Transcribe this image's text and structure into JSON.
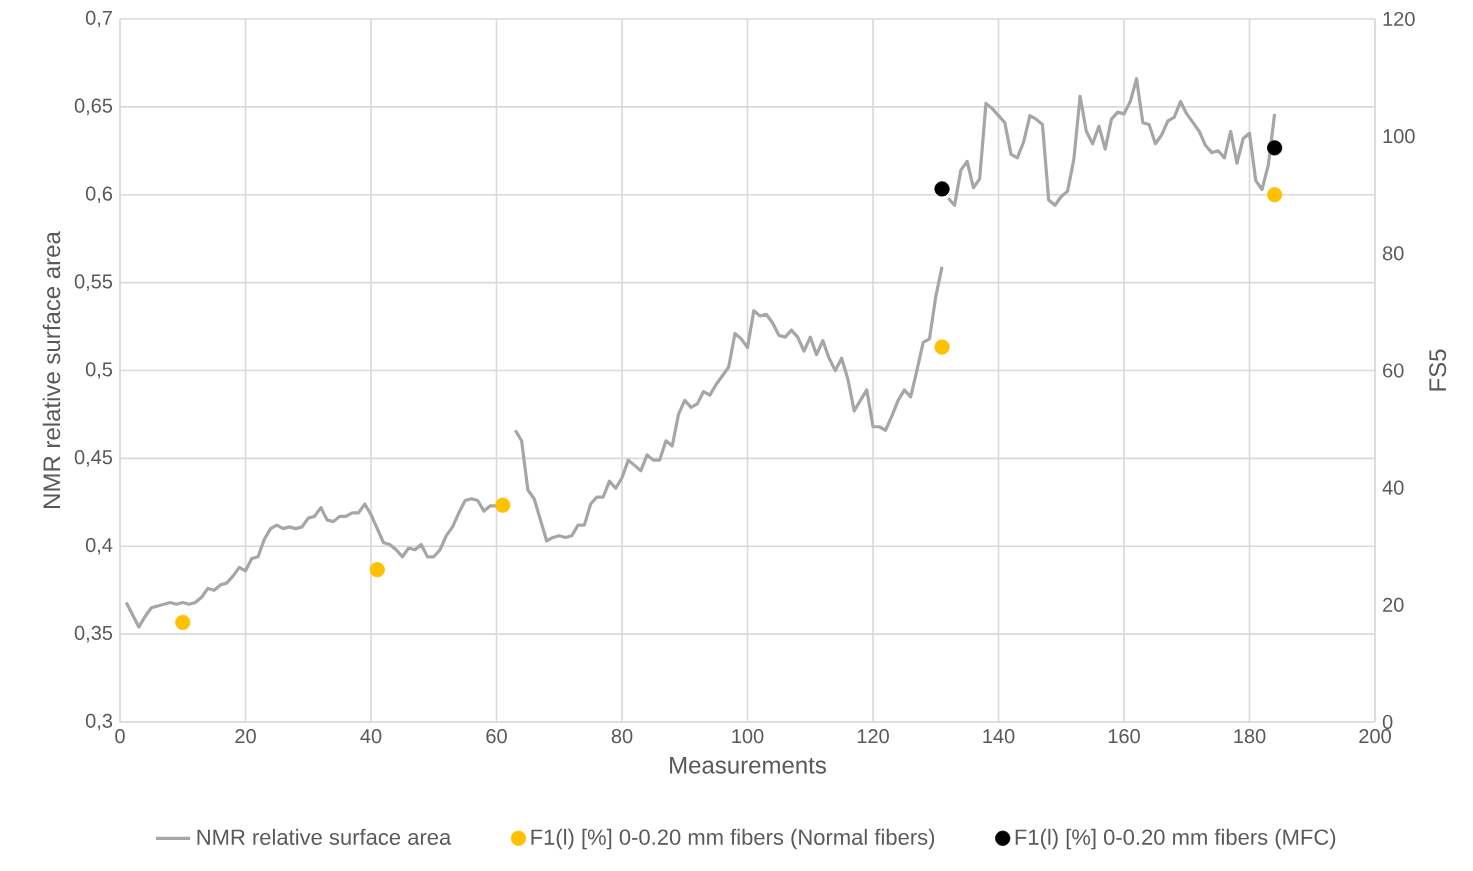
{
  "chart_data": {
    "type": "line",
    "xlabel": "Measurements",
    "ylabel": "NMR relative surface area",
    "y2label": "FS5",
    "xlim": [
      0,
      200
    ],
    "xticks": [
      0,
      20,
      40,
      60,
      80,
      100,
      120,
      140,
      160,
      180,
      200
    ],
    "ylim": [
      0.3,
      0.7
    ],
    "yticks": [
      {
        "value": 0.3,
        "label": "0,3"
      },
      {
        "value": 0.35,
        "label": "0,35"
      },
      {
        "value": 0.4,
        "label": "0,4"
      },
      {
        "value": 0.45,
        "label": "0,45"
      },
      {
        "value": 0.5,
        "label": "0,5"
      },
      {
        "value": 0.55,
        "label": "0,55"
      },
      {
        "value": 0.6,
        "label": "0,6"
      },
      {
        "value": 0.65,
        "label": "0,65"
      },
      {
        "value": 0.7,
        "label": "0,7"
      }
    ],
    "y2lim": [
      0,
      120
    ],
    "y2ticks": [
      0,
      20,
      40,
      60,
      80,
      100,
      120
    ],
    "grid": true,
    "legend": "bottom",
    "line_style": "solid",
    "series": [
      {
        "name": "NMR relative surface area",
        "color": "#a6a6a6",
        "x": [
          1,
          2,
          3,
          4,
          5,
          6,
          7,
          8,
          9,
          10,
          11,
          12,
          13,
          14,
          15,
          16,
          17,
          18,
          19,
          20,
          21,
          22,
          23,
          24,
          25,
          26,
          27,
          28,
          29,
          30,
          31,
          32,
          33,
          34,
          35,
          36,
          37,
          38,
          39,
          40,
          41,
          42,
          43,
          44,
          45,
          46,
          47,
          48,
          49,
          50,
          51,
          52,
          53,
          54,
          55,
          56,
          57,
          58,
          59,
          60,
          61,
          62,
          63,
          64,
          65,
          66,
          67,
          68,
          69,
          70,
          71,
          72,
          73,
          74,
          75,
          76,
          77,
          78,
          79,
          80,
          81,
          82,
          83,
          84,
          85,
          86,
          87,
          88,
          89,
          90,
          91,
          92,
          93,
          94,
          95,
          96,
          97,
          98,
          99,
          100,
          101,
          102,
          103,
          104,
          105,
          106,
          107,
          108,
          109,
          110,
          111,
          112,
          113,
          114,
          115,
          116,
          117,
          118,
          119,
          120,
          121,
          122,
          123,
          124,
          125,
          126,
          127,
          128,
          129,
          130,
          131,
          131.5,
          132,
          133,
          134,
          135,
          136,
          137,
          138,
          139,
          140,
          141,
          142,
          143,
          144,
          145,
          146,
          147,
          148,
          149,
          150,
          151,
          152,
          153,
          154,
          155,
          156,
          157,
          158,
          159,
          160,
          161,
          162,
          163,
          164,
          165,
          166,
          167,
          168,
          169,
          170,
          171,
          172,
          173,
          174,
          175,
          176,
          177,
          178,
          179,
          180,
          181,
          182,
          183,
          184
        ],
        "values": [
          0.368,
          0.361,
          0.354,
          0.36,
          0.365,
          0.366,
          0.367,
          0.368,
          0.367,
          0.368,
          0.367,
          0.368,
          0.371,
          0.376,
          0.375,
          0.378,
          0.379,
          0.383,
          0.388,
          0.386,
          0.393,
          0.394,
          0.404,
          0.41,
          0.412,
          0.41,
          0.411,
          0.41,
          0.411,
          0.416,
          0.417,
          0.422,
          0.415,
          0.414,
          0.417,
          0.417,
          0.419,
          0.419,
          0.424,
          0.418,
          0.41,
          0.402,
          0.401,
          0.398,
          0.394,
          0.399,
          0.398,
          0.401,
          0.394,
          0.394,
          0.398,
          0.406,
          0.411,
          0.419,
          0.426,
          0.427,
          0.426,
          0.42,
          0.423,
          0.423,
          0.424,
          null,
          0.466,
          0.46,
          0.432,
          0.427,
          0.415,
          0.403,
          0.405,
          0.406,
          0.405,
          0.406,
          0.412,
          0.412,
          0.424,
          0.428,
          0.428,
          0.437,
          0.433,
          0.439,
          0.449,
          0.446,
          0.443,
          0.452,
          0.449,
          0.449,
          0.46,
          0.457,
          0.475,
          0.483,
          0.479,
          0.481,
          0.488,
          0.486,
          0.492,
          0.497,
          0.502,
          0.521,
          0.518,
          0.513,
          0.534,
          0.531,
          0.532,
          0.527,
          0.52,
          0.519,
          0.523,
          0.519,
          0.511,
          0.519,
          0.509,
          0.517,
          0.507,
          0.5,
          0.507,
          0.495,
          0.477,
          0.483,
          0.489,
          0.468,
          0.468,
          0.466,
          0.474,
          0.483,
          0.489,
          0.485,
          0.5,
          0.516,
          0.518,
          0.542,
          0.559,
          null,
          0.598,
          0.594,
          0.614,
          0.619,
          0.604,
          0.609,
          0.652,
          0.649,
          0.645,
          0.641,
          0.623,
          0.621,
          0.63,
          0.645,
          0.643,
          0.64,
          0.597,
          0.594,
          0.599,
          0.602,
          0.62,
          0.656,
          0.636,
          0.629,
          0.639,
          0.626,
          0.643,
          0.647,
          0.646,
          0.653,
          0.666,
          0.641,
          0.64,
          0.629,
          0.634,
          0.642,
          0.644,
          0.653,
          0.646,
          0.641,
          0.636,
          0.628,
          0.624,
          0.625,
          0.621,
          0.636,
          0.618,
          0.632,
          0.635,
          0.608,
          0.603,
          0.617,
          0.646
        ]
      },
      {
        "name": "F1(l) [%] 0-0.20 mm fibers (Normal fibers)",
        "type": "scatter",
        "axis": "y2",
        "color": "#ffc000",
        "x": [
          10,
          41,
          61,
          131,
          184
        ],
        "values": [
          17,
          26,
          37,
          64,
          90
        ]
      },
      {
        "name": "F1(l) [%] 0-0.20 mm fibers (MFC)",
        "type": "scatter",
        "axis": "y2",
        "color": "#000000",
        "x": [
          131,
          184
        ],
        "values": [
          91,
          98
        ]
      }
    ]
  }
}
